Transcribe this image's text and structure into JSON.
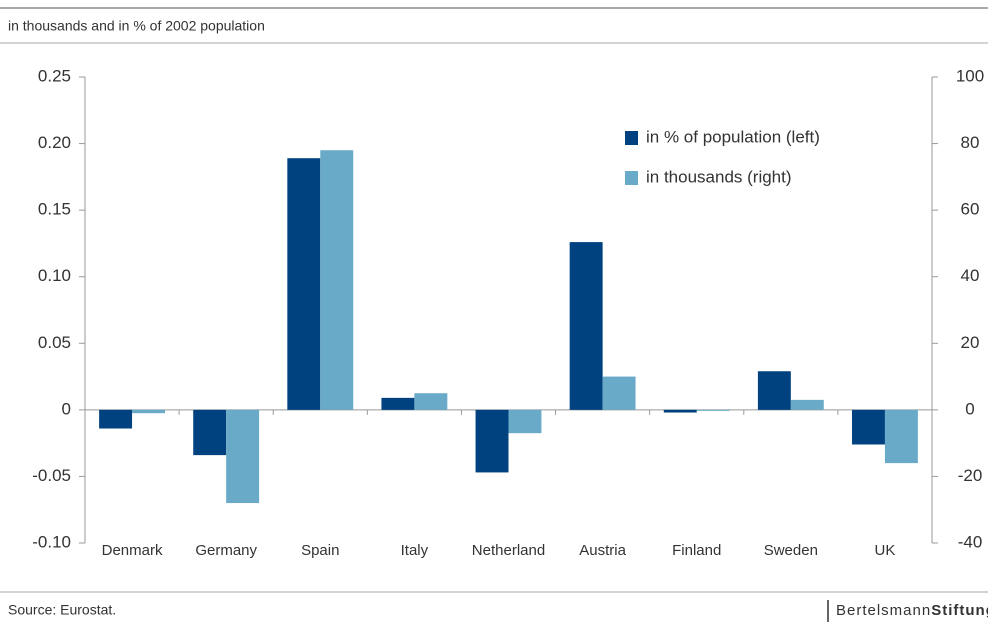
{
  "chart_data": {
    "type": "bar",
    "subtitle": "in thousands and in % of 2002 population",
    "categories": [
      "Denmark",
      "Germany",
      "Spain",
      "Italy",
      "Netherland",
      "Austria",
      "Finland",
      "Sweden",
      "UK"
    ],
    "series": [
      {
        "name": "in % of population (left)",
        "color": "#00427f",
        "values": [
          -0.014,
          -0.034,
          0.189,
          0.009,
          -0.047,
          0.126,
          -0.002,
          0.029,
          -0.026
        ]
      },
      {
        "name": "in thousands (right)",
        "color": "#6aaac9",
        "axis": "y2",
        "values": [
          -1,
          -28,
          78,
          5,
          -7,
          10,
          -0.3,
          3,
          -16
        ]
      }
    ],
    "ylim": [
      -0.1,
      0.25
    ],
    "yticks": [
      {
        "value": -0.1,
        "label": "-0.10"
      },
      -0.05,
      0,
      0.05,
      {
        "value": 0.1,
        "label": "0.10"
      },
      0.15,
      {
        "value": 0.2,
        "label": "0.20"
      },
      0.25
    ],
    "y2lim": [
      -40,
      100
    ],
    "y2ticks": [
      -40,
      -20,
      0,
      20,
      40,
      60,
      80,
      100
    ],
    "grid": false,
    "legend_position": "upper right",
    "source": "Source: Eurostat.",
    "logo": [
      "Bertelsmann",
      "Stiftung"
    ]
  }
}
